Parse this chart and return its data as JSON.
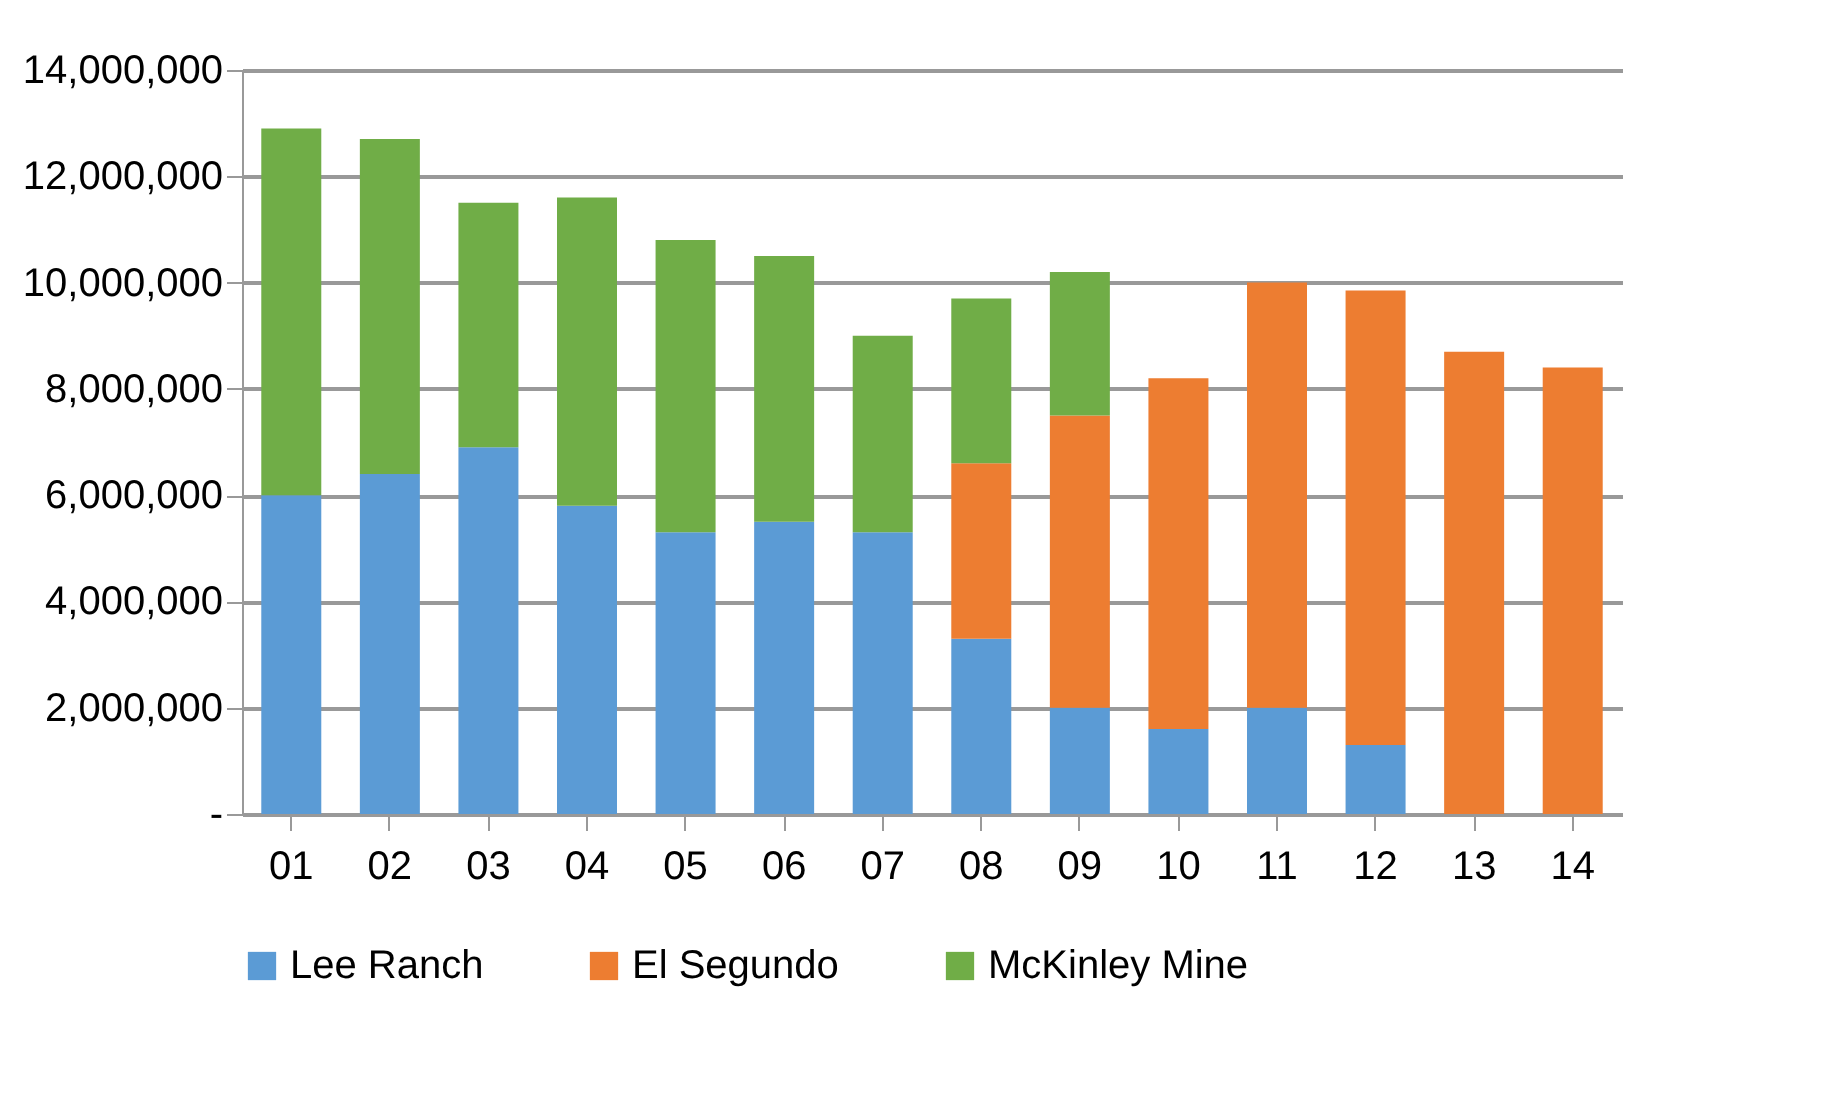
{
  "chart_data": {
    "type": "bar",
    "stacked": true,
    "categories": [
      "01",
      "02",
      "03",
      "04",
      "05",
      "06",
      "07",
      "08",
      "09",
      "10",
      "11",
      "12",
      "13",
      "14"
    ],
    "series": [
      {
        "name": "Lee Ranch",
        "color": "#5b9bd5",
        "values": [
          6000000,
          6400000,
          6900000,
          5800000,
          5300000,
          5500000,
          5300000,
          3300000,
          2000000,
          1600000,
          2000000,
          1300000,
          null,
          null
        ]
      },
      {
        "name": "El Segundo",
        "color": "#ed7d31",
        "values": [
          null,
          null,
          null,
          null,
          null,
          null,
          null,
          3300000,
          5500000,
          6600000,
          8000000,
          8550000,
          8700000,
          8400000
        ]
      },
      {
        "name": "McKinley Mine",
        "color": "#70ad47",
        "values": [
          6900000,
          6300000,
          4600000,
          5800000,
          5500000,
          5000000,
          3700000,
          3100000,
          2700000,
          null,
          null,
          null,
          null,
          null
        ]
      }
    ],
    "ylim": [
      0,
      14000000
    ],
    "yticks": [
      {
        "value": 0,
        "label": "-"
      },
      {
        "value": 2000000,
        "label": "2,000,000"
      },
      {
        "value": 4000000,
        "label": "4,000,000"
      },
      {
        "value": 6000000,
        "label": "6,000,000"
      },
      {
        "value": 8000000,
        "label": "8,000,000"
      },
      {
        "value": 10000000,
        "label": "10,000,000"
      },
      {
        "value": 12000000,
        "label": "12,000,000"
      },
      {
        "value": 14000000,
        "label": "14,000,000"
      }
    ],
    "grid": "y",
    "legend": "bottom"
  }
}
